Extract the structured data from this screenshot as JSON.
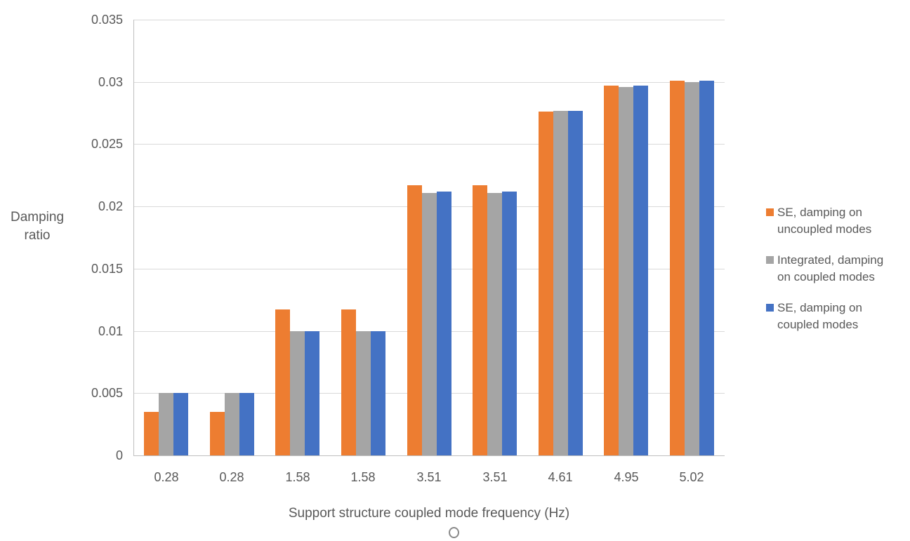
{
  "chart_data": {
    "type": "bar",
    "title": "",
    "categories": [
      "0.28",
      "0.28",
      "1.58",
      "1.58",
      "3.51",
      "3.51",
      "4.61",
      "4.95",
      "5.02"
    ],
    "series": [
      {
        "name": "SE, damping on uncoupled modes",
        "color": "#ED7D31",
        "values": [
          0.0035,
          0.0035,
          0.0117,
          0.0117,
          0.0217,
          0.0217,
          0.0276,
          0.0297,
          0.0301
        ]
      },
      {
        "name": "Integrated, damping on coupled modes",
        "color": "#A5A5A5",
        "values": [
          0.005,
          0.005,
          0.01,
          0.01,
          0.0211,
          0.0211,
          0.0277,
          0.0296,
          0.03
        ]
      },
      {
        "name": "SE, damping on coupled modes",
        "color": "#4472C4",
        "values": [
          0.005,
          0.005,
          0.01,
          0.01,
          0.0212,
          0.0212,
          0.0277,
          0.0297,
          0.0301
        ]
      }
    ],
    "xlabel": "Support structure coupled mode frequency (Hz)",
    "ylabel": "Damping ratio",
    "ylabel_lines": [
      "Damping",
      "ratio"
    ],
    "ylim": [
      0,
      0.035
    ],
    "ytick_step": 0.005,
    "yticks": [
      "0",
      "0.005",
      "0.01",
      "0.015",
      "0.02",
      "0.025",
      "0.03",
      "0.035"
    ],
    "grid": true,
    "legend_position": "right"
  },
  "legend": {
    "items": [
      {
        "label_lines": [
          "SE, damping on",
          "uncoupled modes"
        ],
        "color": "#ED7D31"
      },
      {
        "label_lines": [
          "Integrated, damping",
          "on coupled modes"
        ],
        "color": "#A5A5A5"
      },
      {
        "label_lines": [
          "SE, damping on",
          "coupled modes"
        ],
        "color": "#4472C4"
      }
    ]
  },
  "colors": {
    "background": "#FFFFFF",
    "gridline": "#D9D9D9",
    "axis_line": "#BFBFBF",
    "text": "#595959"
  }
}
